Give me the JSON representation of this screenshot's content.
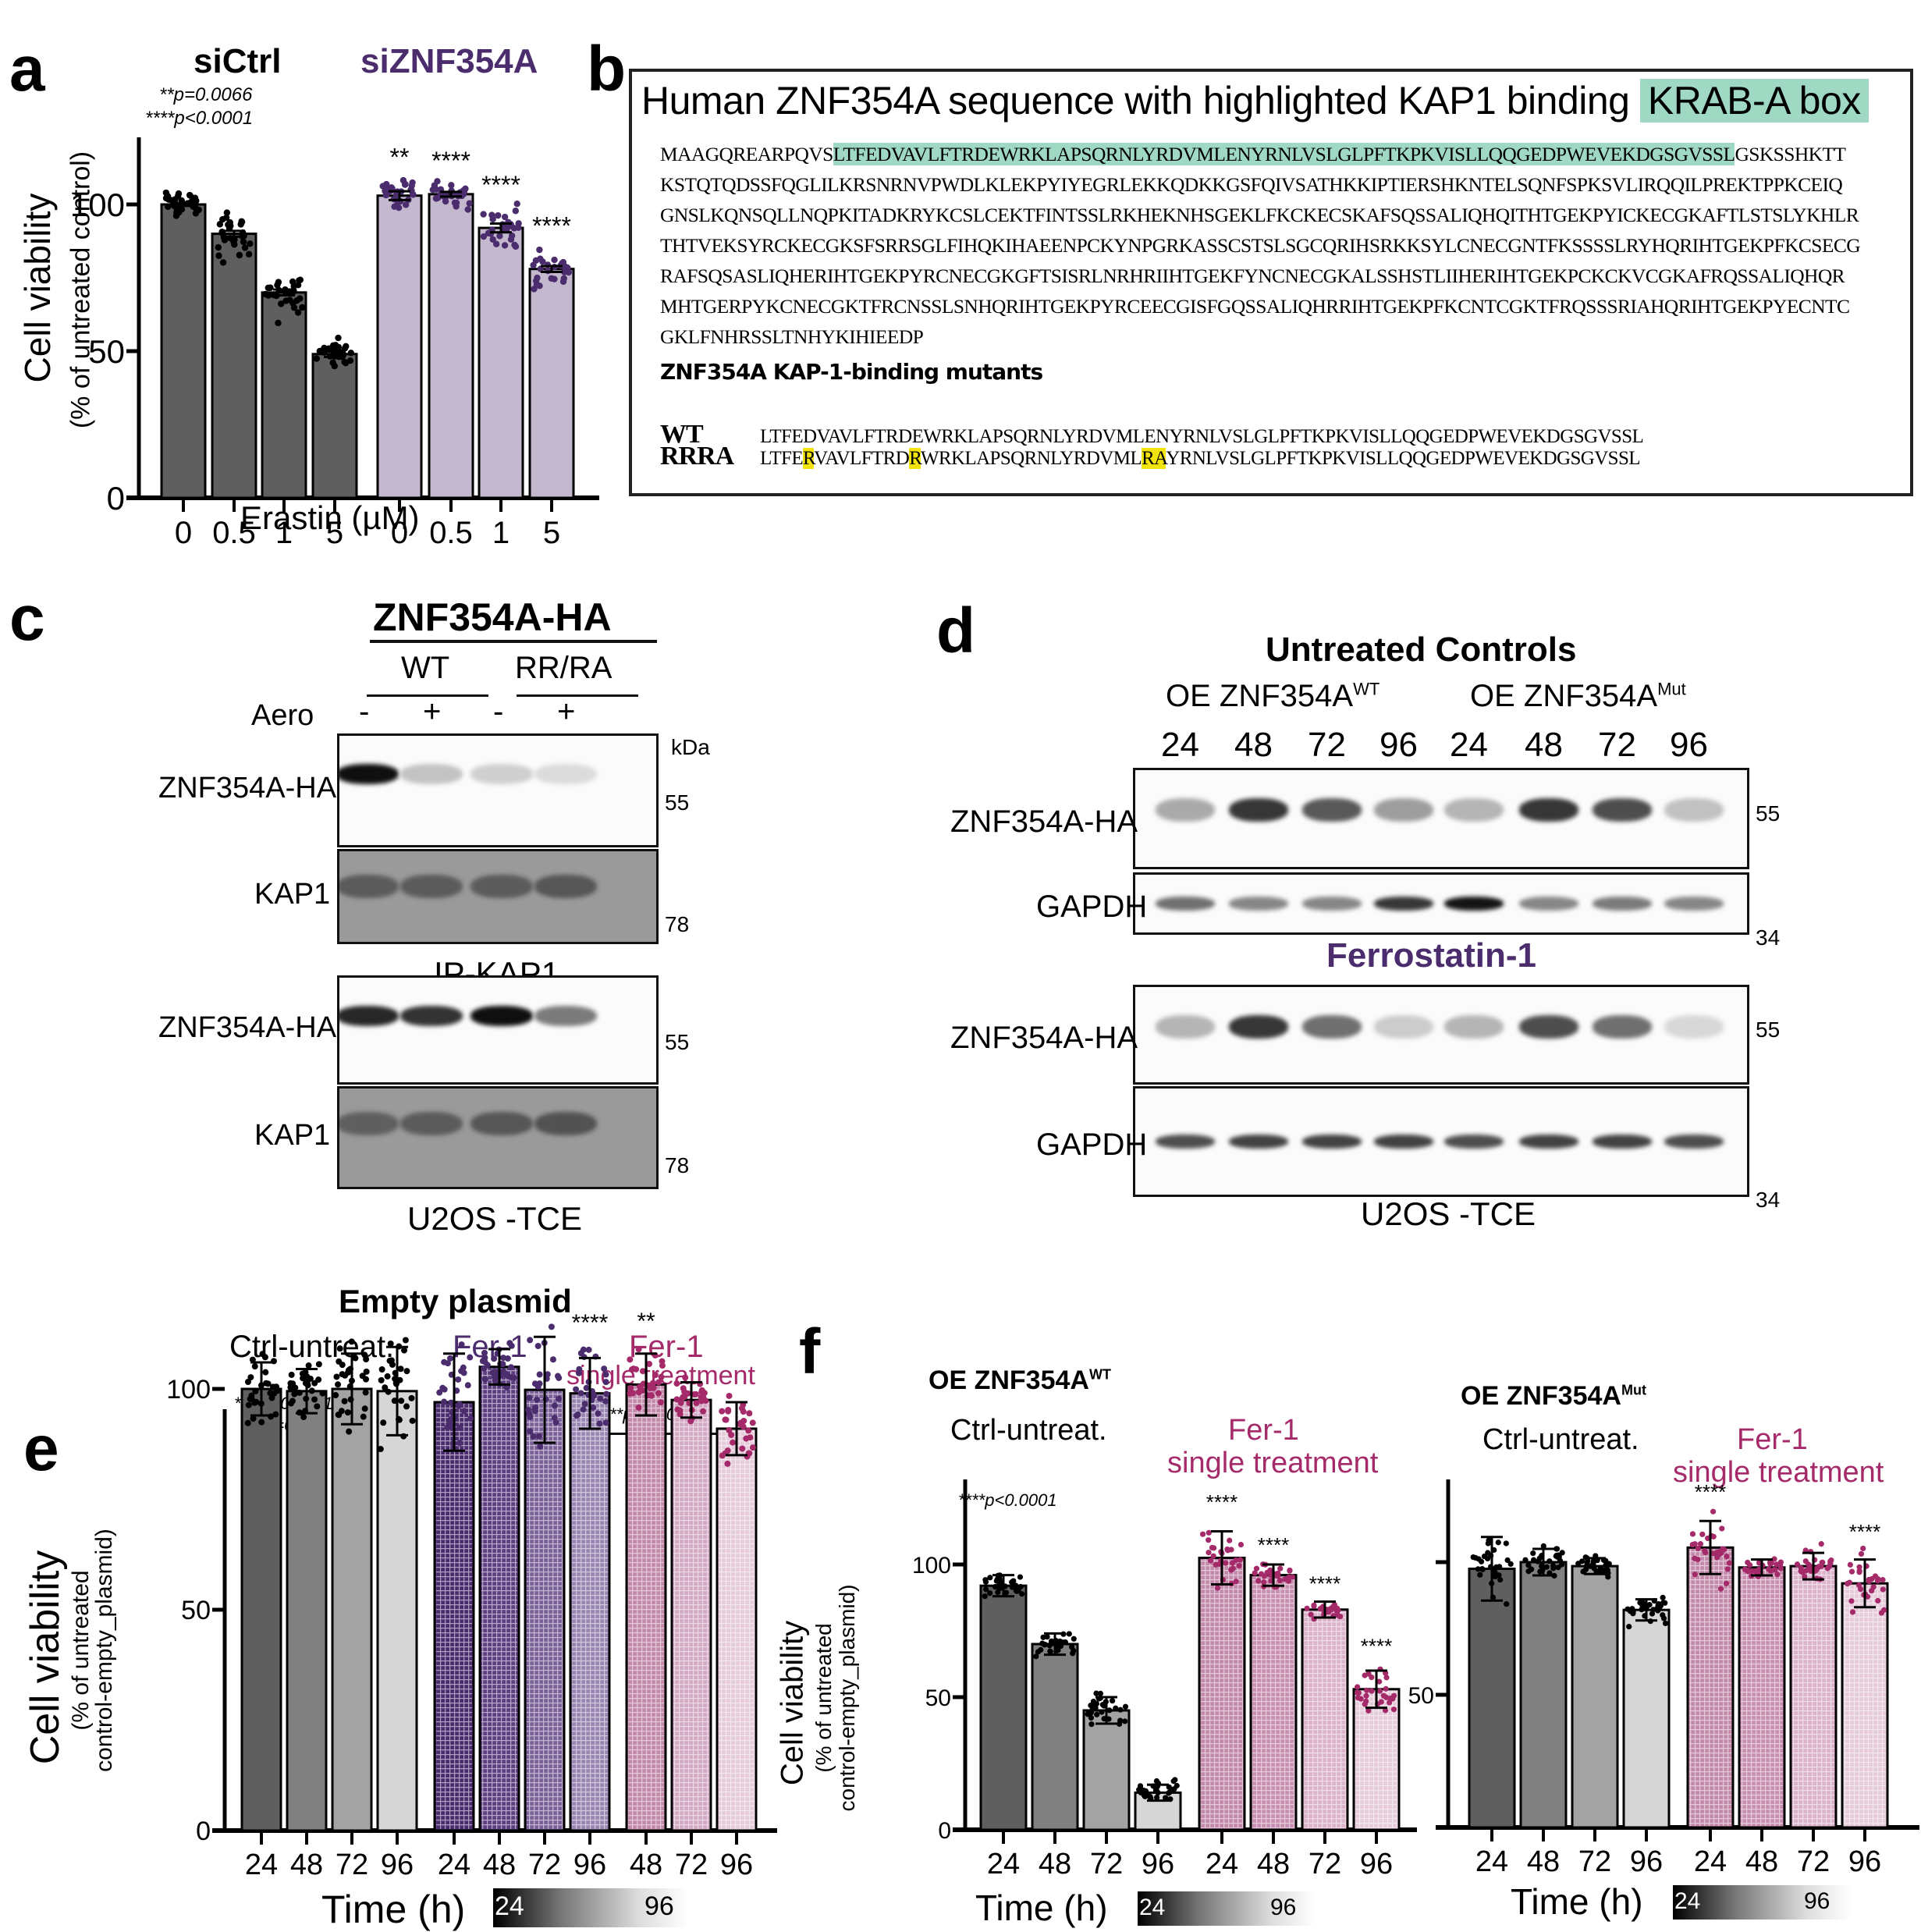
{
  "panels": {
    "a": {
      "letter": "a",
      "group_labels": [
        "siCtrl",
        "siZNF354A"
      ],
      "pvalues": [
        "**p=0.0066",
        "****p<0.0001"
      ],
      "ylabel": "Cell viability",
      "ylabel_sub": "(% of untreated control)",
      "xlabel": "Erastin (µM)"
    },
    "b": {
      "letter": "b",
      "title_prefix": "Human ZNF354A sequence with highlighted KAP1 binding ",
      "title_highlight": "KRAB-A box",
      "sequence_lines": [
        {
          "pre": "MAAGQREARPQVS",
          "hl": "LTFEDVAVLFTRDEWRKLAPSQRNLYRDVMLENYRNLVSLGLPFTKPKVISLLQQGEDPWEVEKDGSGVSSL",
          "post": "GSKSSHKTT"
        },
        {
          "pre": "KSTQTQDSSFQGLILKRSNRNVPWDLKLEKPYIYEGRLEKKQDKKGSFQIVSATHKKIPTIERSHKNTELSQNFSPKSVLIRQQILPREKTPPKCEIQ",
          "hl": "",
          "post": ""
        },
        {
          "pre": "GNSLKQNSQLLNQPKITADKRYKCSLCEKTFINTSSLRKHEKNHSGEKLFKCKECSKAFSQSSALIQHQITHTGEKPYICKECGKAFTLSTSLYKHLR",
          "hl": "",
          "post": ""
        },
        {
          "pre": "THTVEKSYRCKECGKSFSRRSGLFIHQKIHAEENPCKYNPGRKASSCSTSLSGCQRIHSRKKSYLCNECGNTFKSSSSLRYHQRIHTGEKPFKCSECG",
          "hl": "",
          "post": ""
        },
        {
          "pre": "RAFSQSASLIQHERIHTGEKPYRCNECGKGFTSISRLNRHRIIHTGEKFYNCNECGKALSSHSTLIIHERIHTGEKPCKCKVCGKAFRQSSALIQHQR",
          "hl": "",
          "post": ""
        },
        {
          "pre": "MHTGERPYKCNECGKTFRCNSSLSNHQRIHTGEKPYRCEECGISFGQSSALIQHRRIHTGEKPFKCNTCGKTFRQSSSRIAHQRIHTGEKPYECNTC",
          "hl": "",
          "post": ""
        },
        {
          "pre": "GKLFNHRSSLTNHYKIHIEEDP",
          "hl": "",
          "post": ""
        }
      ],
      "mutants_title": "ZNF354A KAP-1-binding mutants",
      "mutants": [
        {
          "name": "WT",
          "segments": [
            {
              "t": "LTFEDVAVLFTRDEWRKLAPSQRNLYRDVMLENYRNLVSLGLPFTKPKVISLLQQGEDPWEVEKDGSGVSSL",
              "hl": false
            }
          ]
        },
        {
          "name": "RRRA",
          "segments": [
            {
              "t": "LTFE",
              "hl": false
            },
            {
              "t": "R",
              "hl": true
            },
            {
              "t": "VAVLFTRD",
              "hl": false
            },
            {
              "t": "R",
              "hl": true
            },
            {
              "t": "WRKLAPSQRNLYRDVML",
              "hl": false
            },
            {
              "t": "RA",
              "hl": true
            },
            {
              "t": "YRNLVSLGLPFTKPKVISLLQQGEDPWEVEKDGSGVSSL",
              "hl": false
            }
          ]
        }
      ],
      "colors": {
        "krab": "#9fd8c3",
        "mutation": "#f2e30b"
      }
    },
    "c": {
      "letter": "c",
      "construct": "ZNF354A-HA",
      "groups": [
        "WT",
        "RR/RA"
      ],
      "treatment_label": "Aero",
      "treatment_signs": [
        "-",
        "+",
        "-",
        "+"
      ],
      "kda_label": "kDa",
      "blocks": [
        {
          "caption": "IP-KAP1",
          "rows": [
            {
              "label": "ZNF354A-HA",
              "kda": "55",
              "style": "white",
              "intensity": [
                1.0,
                0.25,
                0.2,
                0.15
              ]
            },
            {
              "label": "KAP1",
              "kda": "78",
              "style": "gray",
              "intensity": [
                0.55,
                0.55,
                0.55,
                0.6
              ]
            }
          ]
        },
        {
          "caption": "U2OS -TCE",
          "rows": [
            {
              "label": "ZNF354A-HA",
              "kda": "55",
              "style": "white",
              "intensity": [
                0.9,
                0.85,
                1.0,
                0.55
              ]
            },
            {
              "label": "KAP1",
              "kda": "78",
              "style": "gray",
              "intensity": [
                0.5,
                0.55,
                0.6,
                0.65
              ]
            }
          ]
        }
      ]
    },
    "d": {
      "letter": "d",
      "title": "Untreated Controls",
      "groups": [
        {
          "base": "OE ZNF354A",
          "sup": "WT"
        },
        {
          "base": "OE ZNF354A",
          "sup": "Mut"
        }
      ],
      "lanes": [
        "24",
        "48",
        "72",
        "96",
        "24",
        "48",
        "72",
        "96"
      ],
      "middle_caption": "Ferrostatin-1",
      "caption": "U2OS -TCE",
      "blocks": [
        {
          "rows": [
            {
              "label": "ZNF354A-HA",
              "kda": "55",
              "intensity": [
                0.35,
                0.85,
                0.7,
                0.4,
                0.3,
                0.85,
                0.75,
                0.25
              ]
            },
            {
              "label": "GAPDH",
              "kda": "34",
              "intensity": [
                0.6,
                0.5,
                0.5,
                0.85,
                1.0,
                0.5,
                0.55,
                0.5
              ]
            }
          ]
        },
        {
          "rows": [
            {
              "label": "ZNF354A-HA",
              "kda": "55",
              "intensity": [
                0.3,
                0.85,
                0.6,
                0.2,
                0.3,
                0.75,
                0.6,
                0.15
              ]
            },
            {
              "label": "GAPDH",
              "kda": "34",
              "intensity": [
                0.75,
                0.8,
                0.8,
                0.8,
                0.75,
                0.8,
                0.8,
                0.75
              ]
            }
          ]
        }
      ]
    },
    "e": {
      "letter": "e",
      "title": "Empty plasmid",
      "group_labels": [
        "Ctrl-untreat.",
        "Fer-1",
        "Fer-1",
        "single treatment"
      ],
      "pvalues": [
        "****p<0.0001",
        "**p=0.005"
      ],
      "bracket_pvalue": "****p<0.0001",
      "ylabel": "Cell viability",
      "ylabel_sub1": "(% of untreated",
      "ylabel_sub2": "control-empty_plasmid)",
      "xlabel": "Time (h)",
      "gradient_labels": [
        "24",
        "96"
      ]
    },
    "f": {
      "letter": "f",
      "left_title": {
        "base": "OE ZNF354A",
        "sup": "WT"
      },
      "right_title": {
        "base": "OE ZNF354A",
        "sup": "Mut"
      },
      "group_labels": [
        "Ctrl-untreat.",
        "Fer-1",
        "single treatment"
      ],
      "pvalue": "****p<0.0001",
      "ylabel": "Cell viability",
      "ylabel_sub1": "(% of untreated",
      "ylabel_sub2": "control-empty_plasmid)",
      "xlabel": "Time (h)",
      "gradient_labels": [
        "24",
        "96"
      ]
    }
  },
  "chart_data": [
    {
      "id": "a",
      "type": "bar",
      "title": "",
      "xlabel": "Erastin (µM)",
      "ylabel": "Cell viability (% of untreated control)",
      "ylim": [
        0,
        125
      ],
      "yticks": [
        0,
        50,
        100
      ],
      "categories": [
        "0",
        "0.5",
        "1",
        "5",
        "0",
        "0.5",
        "1",
        "5"
      ],
      "groups": [
        "siCtrl",
        "siCtrl",
        "siCtrl",
        "siCtrl",
        "siZNF354A",
        "siZNF354A",
        "siZNF354A",
        "siZNF354A"
      ],
      "values": [
        100,
        90,
        70,
        49,
        103,
        103.5,
        92,
        78
      ],
      "spread": [
        4,
        6,
        6,
        4,
        5,
        4,
        6,
        6
      ],
      "sem": [
        0.5,
        1,
        1,
        1,
        1.5,
        0.8,
        1.5,
        1
      ],
      "significance": [
        "",
        "",
        "",
        "",
        "**",
        "****",
        "****",
        "****"
      ],
      "colors": [
        "#5f5f5f",
        "#5f5f5f",
        "#5f5f5f",
        "#5f5f5f",
        "#c3b8ce",
        "#c3b8ce",
        "#c3b8ce",
        "#c3b8ce"
      ],
      "dot_colors": [
        "#000000",
        "#000000",
        "#000000",
        "#000000",
        "#4b2d6e",
        "#4b2d6e",
        "#4b2d6e",
        "#4b2d6e"
      ],
      "grid": false
    },
    {
      "id": "e",
      "type": "bar",
      "title": "Empty plasmid",
      "xlabel": "Time (h)",
      "ylabel": "Cell viability (% of untreated control-empty_plasmid)",
      "ylim": [
        0,
        125
      ],
      "yticks": [
        0,
        50,
        100
      ],
      "categories": [
        "24",
        "48",
        "72",
        "96",
        "24",
        "48",
        "72",
        "96",
        "48",
        "72",
        "96"
      ],
      "groups": [
        "Ctrl-untreat.",
        "Ctrl-untreat.",
        "Ctrl-untreat.",
        "Ctrl-untreat.",
        "Fer-1",
        "Fer-1",
        "Fer-1",
        "Fer-1",
        "Fer-1 single treatment",
        "Fer-1 single treatment",
        "Fer-1 single treatment"
      ],
      "values": [
        100,
        99.5,
        100,
        99.5,
        97,
        105,
        99.8,
        99,
        101,
        97.5,
        91
      ],
      "sd": [
        6,
        5,
        8,
        10,
        11,
        4,
        12,
        8,
        7,
        4,
        6
      ],
      "significance": [
        "",
        "",
        "",
        "",
        "",
        "",
        "",
        "****",
        "**",
        "",
        ""
      ],
      "colors": [
        "#5f5f5f",
        "#808080",
        "#a3a3a3",
        "#d6d6d6",
        "#4b2d6e",
        "#5e3f82",
        "#7b6199",
        "#9a86b3",
        "#c48aab",
        "#d4a9c3",
        "#e6cbdb"
      ],
      "dot_colors": [
        "#000000",
        "#000000",
        "#000000",
        "#000000",
        "#4b2d6e",
        "#4b2d6e",
        "#4b2d6e",
        "#4b2d6e",
        "#a52a6a",
        "#a52a6a",
        "#a52a6a"
      ],
      "grid": false
    },
    {
      "id": "f-left",
      "type": "bar",
      "title": "OE ZNF354A WT",
      "xlabel": "Time (h)",
      "ylabel": "Cell viability (% of untreated control-empty_plasmid)",
      "ylim": [
        0,
        125
      ],
      "yticks": [
        0,
        50,
        100
      ],
      "categories": [
        "24",
        "48",
        "72",
        "96",
        "24",
        "48",
        "72",
        "96"
      ],
      "groups": [
        "Ctrl-untreat.",
        "Ctrl-untreat.",
        "Ctrl-untreat.",
        "Ctrl-untreat.",
        "Fer-1 single treatment",
        "Fer-1 single treatment",
        "Fer-1 single treatment",
        "Fer-1 single treatment"
      ],
      "values": [
        92,
        70,
        45,
        14,
        102.5,
        96,
        83,
        53
      ],
      "sd": [
        4,
        4,
        5,
        3,
        10,
        4,
        3,
        7
      ],
      "significance": [
        "",
        "",
        "",
        "",
        "****",
        "****",
        "****",
        "****"
      ],
      "colors": [
        "#5f5f5f",
        "#808080",
        "#a3a3a3",
        "#d6d6d6",
        "#c48aab",
        "#c88fb0",
        "#dbb3cb",
        "#e6cbdb"
      ],
      "dot_colors": [
        "#000000",
        "#000000",
        "#000000",
        "#000000",
        "#a52a6a",
        "#a52a6a",
        "#a52a6a",
        "#a52a6a"
      ],
      "grid": false
    },
    {
      "id": "f-right",
      "type": "bar",
      "title": "OE ZNF354A Mut",
      "xlabel": "Time (h)",
      "ylabel": "",
      "ylim": [
        0,
        125
      ],
      "yticks": [
        0,
        50,
        100
      ],
      "ytick_labels": [
        "",
        "50",
        ""
      ],
      "categories": [
        "24",
        "48",
        "72",
        "96",
        "24",
        "48",
        "72",
        "96"
      ],
      "groups": [
        "Ctrl-untreat.",
        "Ctrl-untreat.",
        "Ctrl-untreat.",
        "Ctrl-untreat.",
        "Fer-1 single treatment",
        "Fer-1 single treatment",
        "Fer-1 single treatment",
        "Fer-1 single treatment"
      ],
      "values": [
        97.5,
        100,
        98.5,
        82,
        105.5,
        98,
        98.5,
        92
      ],
      "sd": [
        12,
        5,
        3,
        4,
        10,
        3,
        5,
        9
      ],
      "significance": [
        "",
        "",
        "",
        "",
        "****",
        "",
        "",
        "****"
      ],
      "colors": [
        "#5f5f5f",
        "#808080",
        "#a3a3a3",
        "#d6d6d6",
        "#c48aab",
        "#c88fb0",
        "#dbb3cb",
        "#e6cbdb"
      ],
      "dot_colors": [
        "#000000",
        "#000000",
        "#000000",
        "#000000",
        "#a52a6a",
        "#a52a6a",
        "#a52a6a",
        "#a52a6a"
      ],
      "grid": false
    }
  ],
  "colors": {
    "siZNF_label": "#4b2d6e",
    "fer1_purple": "#4b2d6e",
    "fer1_single_magenta": "#a52a6a",
    "krab_highlight": "#9fd8c3",
    "mutation_highlight": "#f2e30b"
  }
}
